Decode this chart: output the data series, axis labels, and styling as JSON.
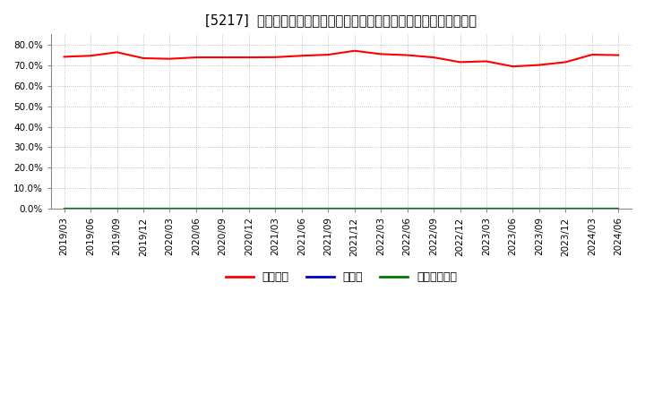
{
  "title": "[5217]  自己資本、のれん、繰延税金資産の総資産に対する比率の推移",
  "ylim": [
    0.0,
    0.85
  ],
  "yticks": [
    0.0,
    0.1,
    0.2,
    0.3,
    0.4,
    0.5,
    0.6,
    0.7,
    0.8
  ],
  "ytick_labels": [
    "0.0%",
    "10.0%",
    "20.0%",
    "30.0%",
    "40.0%",
    "50.0%",
    "60.0%",
    "70.0%",
    "80.0%"
  ],
  "dates": [
    "2019/03",
    "2019/06",
    "2019/09",
    "2019/12",
    "2020/03",
    "2020/06",
    "2020/09",
    "2020/12",
    "2021/03",
    "2021/06",
    "2021/09",
    "2021/12",
    "2022/03",
    "2022/06",
    "2022/09",
    "2022/12",
    "2023/03",
    "2023/06",
    "2023/09",
    "2023/12",
    "2024/03",
    "2024/06"
  ],
  "equity_ratio": [
    0.74,
    0.745,
    0.762,
    0.733,
    0.73,
    0.737,
    0.737,
    0.737,
    0.738,
    0.745,
    0.75,
    0.769,
    0.753,
    0.748,
    0.737,
    0.714,
    0.718,
    0.693,
    0.7,
    0.714,
    0.75,
    0.748
  ],
  "goodwill_ratio": [
    0.0,
    0.0,
    0.0,
    0.0,
    0.0,
    0.0,
    0.0,
    0.0,
    0.0,
    0.0,
    0.0,
    0.0,
    0.0,
    0.0,
    0.0,
    0.0,
    0.0,
    0.0,
    0.0,
    0.0,
    0.0,
    0.0
  ],
  "deferred_tax_ratio": [
    0.0,
    0.0,
    0.0,
    0.0,
    0.0,
    0.0,
    0.0,
    0.0,
    0.0,
    0.0,
    0.0,
    0.0,
    0.0,
    0.0,
    0.0,
    0.0,
    0.0,
    0.0,
    0.0,
    0.0,
    0.0,
    0.0
  ],
  "equity_color": "#ff0000",
  "goodwill_color": "#0000cc",
  "deferred_tax_color": "#007700",
  "legend_label_equity": "自己資本",
  "legend_label_goodwill": "のれん",
  "legend_label_deferred": "繰延税金資産",
  "bg_color": "#ffffff",
  "plot_bg_color": "#ffffff",
  "grid_color": "#999999",
  "title_fontsize": 10.5,
  "tick_fontsize": 7.5,
  "legend_fontsize": 9
}
